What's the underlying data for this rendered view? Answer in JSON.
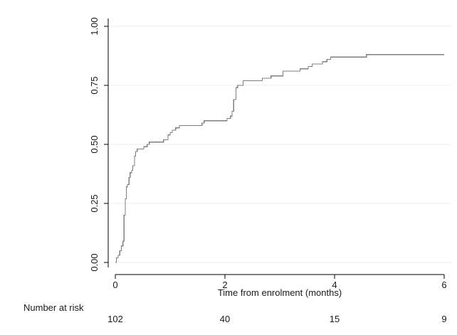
{
  "chart_data": {
    "type": "line",
    "title": "",
    "xlabel": "Time from enrolment (months)",
    "ylabel": "",
    "xlim": [
      0,
      6
    ],
    "ylim": [
      0,
      1
    ],
    "x_ticks": [
      "0",
      "2",
      "4",
      "6"
    ],
    "y_ticks": [
      "0.00",
      "0.25",
      "0.50",
      "0.75",
      "1.00"
    ],
    "grid": "horizontal",
    "legend": "none",
    "line_color": "#7f7f7f",
    "series": [
      {
        "step": true,
        "x": [
          0,
          0.02,
          0.05,
          0.08,
          0.11,
          0.14,
          0.16,
          0.18,
          0.2,
          0.22,
          0.25,
          0.27,
          0.3,
          0.32,
          0.35,
          0.37,
          0.4,
          0.46,
          0.52,
          0.58,
          0.62,
          0.66,
          0.74,
          0.8,
          0.88,
          0.96,
          1.0,
          1.04,
          1.1,
          1.17,
          1.23,
          1.58,
          1.62,
          1.67,
          1.95,
          2.04,
          2.1,
          2.13,
          2.16,
          2.2,
          2.23,
          2.28,
          2.33,
          2.68,
          2.74,
          2.84,
          2.93,
          3.06,
          3.37,
          3.52,
          3.59,
          3.78,
          3.86,
          3.93,
          4.05,
          4.58,
          4.75,
          6.0
        ],
        "y": [
          0.0,
          0.02,
          0.03,
          0.05,
          0.07,
          0.09,
          0.2,
          0.27,
          0.32,
          0.33,
          0.36,
          0.38,
          0.39,
          0.41,
          0.45,
          0.47,
          0.48,
          0.48,
          0.49,
          0.5,
          0.51,
          0.51,
          0.51,
          0.51,
          0.52,
          0.54,
          0.55,
          0.56,
          0.57,
          0.58,
          0.58,
          0.59,
          0.6,
          0.6,
          0.6,
          0.61,
          0.62,
          0.64,
          0.69,
          0.74,
          0.75,
          0.75,
          0.77,
          0.78,
          0.78,
          0.79,
          0.79,
          0.81,
          0.82,
          0.83,
          0.84,
          0.85,
          0.86,
          0.87,
          0.87,
          0.88,
          0.88,
          0.88
        ]
      }
    ],
    "risk_table": {
      "title": "Number at risk",
      "times": [
        0,
        2,
        4,
        6
      ],
      "values": [
        "102",
        "40",
        "15",
        "9"
      ]
    }
  }
}
